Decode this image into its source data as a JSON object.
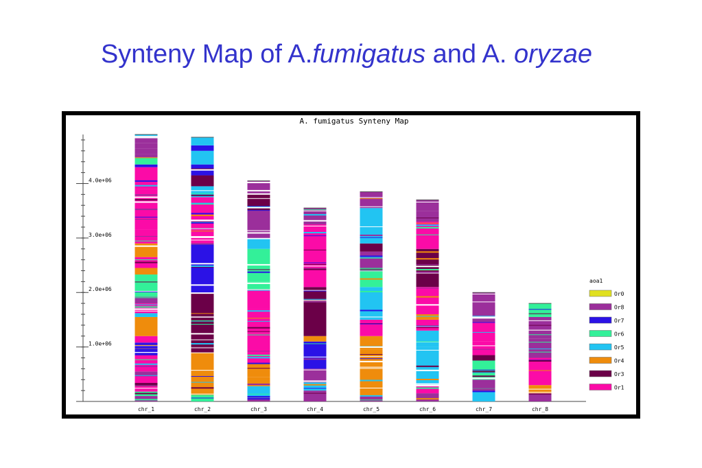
{
  "slide": {
    "title_a": "Synteny Map of A.",
    "title_b": "fumigatus",
    "title_c": " and A. ",
    "title_d": "oryzae"
  },
  "chart_data": {
    "type": "bar",
    "title": "A. fumigatus Synteny Map",
    "categories": [
      "chr_1",
      "chr_2",
      "chr_3",
      "chr_4",
      "chr_5",
      "chr_6",
      "chr_7",
      "chr_8"
    ],
    "lengths": [
      4900000,
      4850000,
      4050000,
      3550000,
      3850000,
      3700000,
      2000000,
      1800000
    ],
    "ylim": [
      0,
      4900000
    ],
    "yticks": [
      {
        "value": 1000000,
        "label": "1.0e+06"
      },
      {
        "value": 2000000,
        "label": "2.0e+06"
      },
      {
        "value": 3000000,
        "label": "3.0e+06"
      },
      {
        "value": 4000000,
        "label": "4.0e+06"
      }
    ],
    "legend": {
      "title": "aoa1",
      "placement": "right",
      "entries": [
        {
          "name": "Or0",
          "color": "#e0e020"
        },
        {
          "name": "Or8",
          "color": "#9b2f9b"
        },
        {
          "name": "Or7",
          "color": "#2b12e6"
        },
        {
          "name": "Or6",
          "color": "#33f099"
        },
        {
          "name": "Or5",
          "color": "#22c4f2"
        },
        {
          "name": "Or4",
          "color": "#ef8c0c"
        },
        {
          "name": "Or3",
          "color": "#6b0048"
        },
        {
          "name": "Or1",
          "color": "#fb0ba7"
        }
      ]
    },
    "series": [
      {
        "category": "chr_1",
        "segments": [
          {
            "start": 0,
            "end": 100000,
            "group": "Or8"
          },
          {
            "start": 100000,
            "end": 180000,
            "group": "Or6"
          },
          {
            "start": 180000,
            "end": 280000,
            "group": "Or1"
          },
          {
            "start": 280000,
            "end": 340000,
            "group": "Or3"
          },
          {
            "start": 340000,
            "end": 460000,
            "group": "Or1"
          },
          {
            "start": 460000,
            "end": 550000,
            "group": "Or8"
          },
          {
            "start": 550000,
            "end": 850000,
            "group": "Or1"
          },
          {
            "start": 850000,
            "end": 1080000,
            "group": "Or7"
          },
          {
            "start": 1080000,
            "end": 1200000,
            "group": "Or1"
          },
          {
            "start": 1200000,
            "end": 1550000,
            "group": "Or4"
          },
          {
            "start": 1550000,
            "end": 1620000,
            "group": "Or5"
          },
          {
            "start": 1620000,
            "end": 1800000,
            "group": "Or1"
          },
          {
            "start": 1800000,
            "end": 1920000,
            "group": "Or8"
          },
          {
            "start": 1920000,
            "end": 2330000,
            "group": "Or6"
          },
          {
            "start": 2330000,
            "end": 2450000,
            "group": "Or4"
          },
          {
            "start": 2450000,
            "end": 2650000,
            "group": "Or1"
          },
          {
            "start": 2650000,
            "end": 2900000,
            "group": "Or4"
          },
          {
            "start": 2900000,
            "end": 3150000,
            "group": "Or1"
          },
          {
            "start": 3150000,
            "end": 3900000,
            "group": "Or1"
          },
          {
            "start": 3900000,
            "end": 4300000,
            "group": "Or1"
          },
          {
            "start": 4300000,
            "end": 4350000,
            "group": "Or7"
          },
          {
            "start": 4350000,
            "end": 4480000,
            "group": "Or6"
          },
          {
            "start": 4480000,
            "end": 4540000,
            "group": "Or8"
          },
          {
            "start": 4540000,
            "end": 4640000,
            "group": "Or8"
          },
          {
            "start": 4640000,
            "end": 4740000,
            "group": "Or8"
          },
          {
            "start": 4740000,
            "end": 4860000,
            "group": "Or8"
          },
          {
            "start": 4860000,
            "end": 4900000,
            "group": "Or5"
          }
        ]
      },
      {
        "category": "chr_2",
        "segments": [
          {
            "start": 0,
            "end": 120000,
            "group": "Or6"
          },
          {
            "start": 120000,
            "end": 900000,
            "group": "Or4"
          },
          {
            "start": 900000,
            "end": 1000000,
            "group": "Or3"
          },
          {
            "start": 1000000,
            "end": 1550000,
            "group": "Or3"
          },
          {
            "start": 1550000,
            "end": 2000000,
            "group": "Or3"
          },
          {
            "start": 2000000,
            "end": 2900000,
            "group": "Or7"
          },
          {
            "start": 2900000,
            "end": 3300000,
            "group": "Or1"
          },
          {
            "start": 3300000,
            "end": 3750000,
            "group": "Or1"
          },
          {
            "start": 3750000,
            "end": 3950000,
            "group": "Or5"
          },
          {
            "start": 3950000,
            "end": 4150000,
            "group": "Or3"
          },
          {
            "start": 4150000,
            "end": 4350000,
            "group": "Or7"
          },
          {
            "start": 4350000,
            "end": 4600000,
            "group": "Or5"
          },
          {
            "start": 4600000,
            "end": 4700000,
            "group": "Or7"
          },
          {
            "start": 4700000,
            "end": 4850000,
            "group": "Or5"
          }
        ]
      },
      {
        "category": "chr_3",
        "segments": [
          {
            "start": 0,
            "end": 80000,
            "group": "Or8"
          },
          {
            "start": 80000,
            "end": 280000,
            "group": "Or5"
          },
          {
            "start": 280000,
            "end": 450000,
            "group": "Or4"
          },
          {
            "start": 450000,
            "end": 700000,
            "group": "Or4"
          },
          {
            "start": 700000,
            "end": 1250000,
            "group": "Or1"
          },
          {
            "start": 1250000,
            "end": 1700000,
            "group": "Or1"
          },
          {
            "start": 1700000,
            "end": 2050000,
            "group": "Or1"
          },
          {
            "start": 2050000,
            "end": 2200000,
            "group": "Or6"
          },
          {
            "start": 2200000,
            "end": 2800000,
            "group": "Or6"
          },
          {
            "start": 2800000,
            "end": 3000000,
            "group": "Or5"
          },
          {
            "start": 3000000,
            "end": 3250000,
            "group": "Or8"
          },
          {
            "start": 3250000,
            "end": 3500000,
            "group": "Or8"
          },
          {
            "start": 3500000,
            "end": 3800000,
            "group": "Or3"
          },
          {
            "start": 3800000,
            "end": 4050000,
            "group": "Or8"
          }
        ]
      },
      {
        "category": "chr_4",
        "segments": [
          {
            "start": 0,
            "end": 200000,
            "group": "Or8"
          },
          {
            "start": 200000,
            "end": 350000,
            "group": "Or5"
          },
          {
            "start": 350000,
            "end": 600000,
            "group": "Or8"
          },
          {
            "start": 600000,
            "end": 1100000,
            "group": "Or7"
          },
          {
            "start": 1100000,
            "end": 1200000,
            "group": "Or4"
          },
          {
            "start": 1200000,
            "end": 2100000,
            "group": "Or3"
          },
          {
            "start": 2100000,
            "end": 3250000,
            "group": "Or1"
          },
          {
            "start": 3250000,
            "end": 3550000,
            "group": "Or8"
          }
        ]
      },
      {
        "category": "chr_5",
        "segments": [
          {
            "start": 0,
            "end": 100000,
            "group": "Or8"
          },
          {
            "start": 100000,
            "end": 580000,
            "group": "Or4"
          },
          {
            "start": 580000,
            "end": 950000,
            "group": "Or4"
          },
          {
            "start": 950000,
            "end": 1200000,
            "group": "Or4"
          },
          {
            "start": 1200000,
            "end": 1500000,
            "group": "Or1"
          },
          {
            "start": 1500000,
            "end": 2100000,
            "group": "Or5"
          },
          {
            "start": 2100000,
            "end": 2450000,
            "group": "Or6"
          },
          {
            "start": 2450000,
            "end": 2750000,
            "group": "Or8"
          },
          {
            "start": 2750000,
            "end": 2900000,
            "group": "Or3"
          },
          {
            "start": 2900000,
            "end": 3250000,
            "group": "Or5"
          },
          {
            "start": 3250000,
            "end": 3550000,
            "group": "Or5"
          },
          {
            "start": 3550000,
            "end": 3850000,
            "group": "Or8"
          }
        ]
      },
      {
        "category": "chr_6",
        "segments": [
          {
            "start": 0,
            "end": 150000,
            "group": "Or8"
          },
          {
            "start": 150000,
            "end": 300000,
            "group": "Or1"
          },
          {
            "start": 300000,
            "end": 1000000,
            "group": "Or5"
          },
          {
            "start": 1000000,
            "end": 1300000,
            "group": "Or5"
          },
          {
            "start": 1300000,
            "end": 1500000,
            "group": "Or1"
          },
          {
            "start": 1500000,
            "end": 1600000,
            "group": "Or4"
          },
          {
            "start": 1600000,
            "end": 2100000,
            "group": "Or1"
          },
          {
            "start": 2100000,
            "end": 2800000,
            "group": "Or3"
          },
          {
            "start": 2800000,
            "end": 3300000,
            "group": "Or1"
          },
          {
            "start": 3300000,
            "end": 3500000,
            "group": "Or8"
          },
          {
            "start": 3500000,
            "end": 3700000,
            "group": "Or8"
          }
        ]
      },
      {
        "category": "chr_7",
        "segments": [
          {
            "start": 0,
            "end": 180000,
            "group": "Or5"
          },
          {
            "start": 180000,
            "end": 400000,
            "group": "Or8"
          },
          {
            "start": 400000,
            "end": 750000,
            "group": "Or6"
          },
          {
            "start": 750000,
            "end": 850000,
            "group": "Or3"
          },
          {
            "start": 850000,
            "end": 1100000,
            "group": "Or1"
          },
          {
            "start": 1100000,
            "end": 1450000,
            "group": "Or1"
          },
          {
            "start": 1450000,
            "end": 1650000,
            "group": "Or8"
          },
          {
            "start": 1650000,
            "end": 2000000,
            "group": "Or8"
          }
        ]
      },
      {
        "category": "chr_8",
        "segments": [
          {
            "start": 0,
            "end": 150000,
            "group": "Or8"
          },
          {
            "start": 150000,
            "end": 300000,
            "group": "Or4"
          },
          {
            "start": 300000,
            "end": 800000,
            "group": "Or1"
          },
          {
            "start": 800000,
            "end": 1150000,
            "group": "Or8"
          },
          {
            "start": 1150000,
            "end": 1300000,
            "group": "Or8"
          },
          {
            "start": 1300000,
            "end": 1550000,
            "group": "Or8"
          },
          {
            "start": 1550000,
            "end": 1800000,
            "group": "Or6"
          }
        ]
      }
    ]
  }
}
